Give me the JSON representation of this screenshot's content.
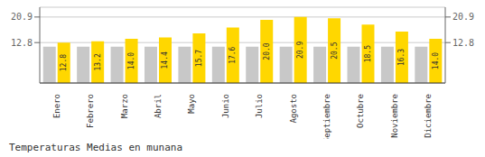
{
  "chart_data": {
    "type": "bar",
    "title": "Temperaturas Medias en munana",
    "categories": [
      "Enero",
      "Febrero",
      "Marzo",
      "Abril",
      "Mayo",
      "Junio",
      "Julio",
      "Agosto",
      "Septiembre",
      "Octubre",
      "Noviembre",
      "Diciembre"
    ],
    "series": [
      {
        "color": "#C8C8C8",
        "values": [
          11.5,
          11.5,
          11.5,
          11.5,
          11.5,
          11.5,
          11.5,
          11.5,
          11.5,
          11.5,
          11.5,
          11.5
        ]
      },
      {
        "color": "#FFD700",
        "values": [
          12.8,
          13.2,
          14.0,
          14.4,
          15.7,
          17.6,
          20.0,
          20.9,
          20.5,
          18.5,
          16.3,
          14.0
        ],
        "data_labels": true,
        "value_labels": [
          "12.8",
          "13.2",
          "14.0",
          "14.4",
          "15.7",
          "17.6",
          "20.0",
          "20.9",
          "20.5",
          "18.5",
          "16.3",
          "14.0"
        ]
      }
    ],
    "ylim": [
      0.0,
      24.0
    ],
    "yticks": [
      12.8,
      20.9
    ],
    "y2lim": [
      0.0,
      24.0
    ],
    "y2ticks": [
      12.8,
      20.9
    ],
    "grid": true
  }
}
